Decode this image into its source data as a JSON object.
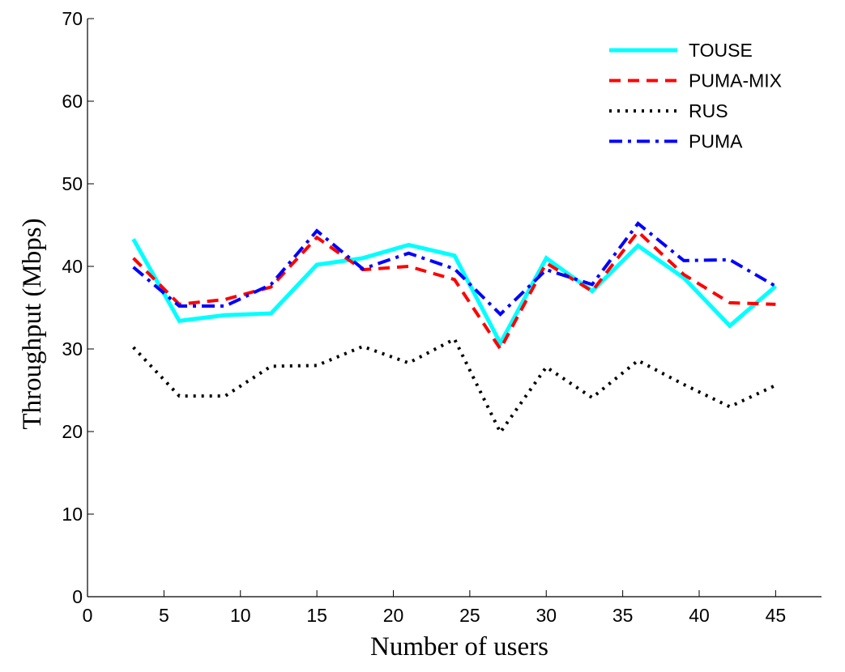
{
  "chart_data": {
    "type": "line",
    "xlabel": "Number of users",
    "ylabel": "Throughput (Mbps)",
    "xlim": [
      0,
      48
    ],
    "ylim": [
      0,
      70
    ],
    "xticks": [
      0,
      5,
      10,
      15,
      20,
      25,
      30,
      35,
      40,
      45
    ],
    "yticks": [
      0,
      10,
      20,
      30,
      40,
      50,
      60,
      70
    ],
    "xtick_labels": [
      "0",
      "5",
      "10",
      "15",
      "20",
      "25",
      "30",
      "35",
      "40",
      "45"
    ],
    "ytick_labels": [
      "0",
      "10",
      "20",
      "30",
      "40",
      "50",
      "60",
      "70"
    ],
    "grid": false,
    "legend_position": "top-right",
    "x": [
      3,
      6,
      9,
      12,
      15,
      18,
      21,
      24,
      27,
      30,
      33,
      36,
      39,
      42,
      45
    ],
    "series": [
      {
        "name": "TOUSE",
        "color": "#00ffff",
        "line_style": "solid",
        "values": [
          43.3,
          33.4,
          34.1,
          34.3,
          40.2,
          41.0,
          42.6,
          41.3,
          30.7,
          41.0,
          37.0,
          42.5,
          38.6,
          32.8,
          37.6
        ]
      },
      {
        "name": "PUMA-MIX",
        "color": "#ff0000",
        "line_style": "dashed",
        "values": [
          41.0,
          35.4,
          36.0,
          37.5,
          43.5,
          39.6,
          40.0,
          38.4,
          30.0,
          40.4,
          37.0,
          44.2,
          39.0,
          35.6,
          35.4
        ]
      },
      {
        "name": "RUS",
        "color": "#000000",
        "line_style": "dotted",
        "values": [
          30.2,
          24.3,
          24.3,
          27.9,
          28.0,
          30.3,
          28.3,
          31.2,
          19.9,
          27.8,
          24.1,
          28.6,
          25.7,
          23.0,
          25.6
        ]
      },
      {
        "name": "PUMA",
        "color": "#0000ff",
        "line_style": "dashdot",
        "values": [
          39.9,
          35.2,
          35.2,
          37.8,
          44.3,
          39.7,
          41.6,
          39.7,
          34.2,
          39.6,
          37.8,
          45.2,
          40.7,
          40.8,
          37.6
        ]
      }
    ]
  }
}
